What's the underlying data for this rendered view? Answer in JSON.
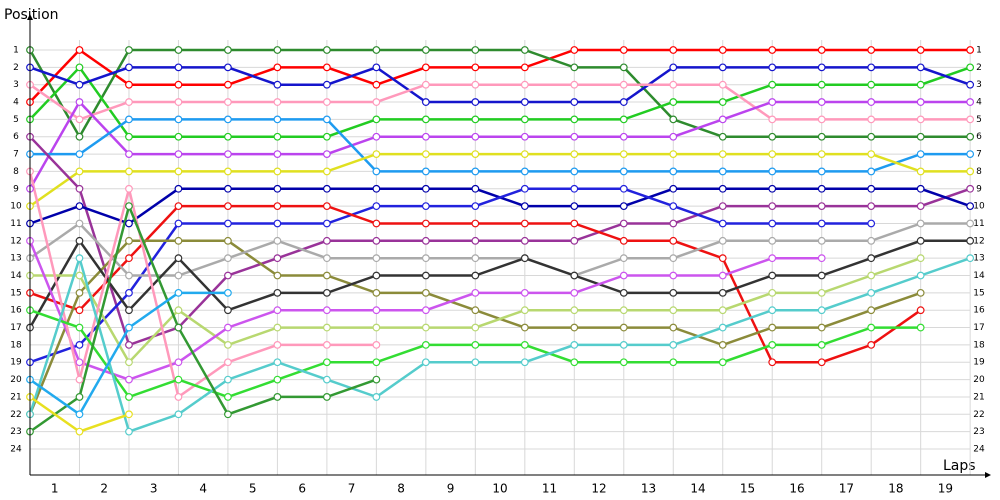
{
  "chart_data": {
    "type": "line",
    "y_label": "Position",
    "x_label": "Laps",
    "x": [
      0,
      1,
      2,
      3,
      4,
      5,
      6,
      7,
      8,
      9,
      10,
      11,
      12,
      13,
      14,
      15,
      16,
      17,
      18,
      19
    ],
    "xlim": [
      0,
      19.3
    ],
    "xticks": [
      {
        "value": 0.5,
        "label": "1"
      },
      {
        "value": 1.5,
        "label": "2"
      },
      {
        "value": 2.5,
        "label": "3"
      },
      {
        "value": 3.5,
        "label": "4"
      },
      {
        "value": 4.5,
        "label": "5"
      },
      {
        "value": 5.5,
        "label": "6"
      },
      {
        "value": 6.5,
        "label": "7"
      },
      {
        "value": 7.5,
        "label": "8"
      },
      {
        "value": 8.5,
        "label": "9"
      },
      {
        "value": 9.5,
        "label": "10"
      },
      {
        "value": 10.5,
        "label": "11"
      },
      {
        "value": 11.5,
        "label": "12"
      },
      {
        "value": 12.5,
        "label": "13"
      },
      {
        "value": 13.5,
        "label": "14"
      },
      {
        "value": 14.5,
        "label": "15"
      },
      {
        "value": 15.5,
        "label": "16"
      },
      {
        "value": 16.5,
        "label": "17"
      },
      {
        "value": 17.5,
        "label": "18"
      },
      {
        "value": 18.5,
        "label": "19"
      }
    ],
    "ylim": [
      -0.73,
      25.5
    ],
    "y_inverted": true,
    "yticks": [
      1,
      2,
      3,
      4,
      5,
      6,
      7,
      8,
      9,
      10,
      11,
      12,
      13,
      14,
      15,
      16,
      17,
      18,
      19,
      20,
      21,
      22,
      23,
      24
    ],
    "grid": true,
    "series": [
      {
        "color": "#ff0000",
        "values": [
          4,
          1,
          3,
          3,
          3,
          2,
          2,
          3,
          2,
          2,
          2,
          1,
          1,
          1,
          1,
          1,
          1,
          1,
          1,
          1
        ]
      },
      {
        "color": "#2e8b2e",
        "values": [
          1,
          6,
          1,
          1,
          1,
          1,
          1,
          1,
          1,
          1,
          1,
          2,
          2,
          5,
          6,
          6,
          6,
          6,
          6,
          6
        ]
      },
      {
        "color": "#22cc22",
        "values": [
          5,
          2,
          6,
          6,
          6,
          6,
          6,
          5,
          5,
          5,
          5,
          5,
          5,
          4,
          4,
          3,
          3,
          3,
          3,
          2
        ]
      },
      {
        "color": "#1515cc",
        "values": [
          2,
          3,
          2,
          2,
          2,
          3,
          3,
          2,
          4,
          4,
          4,
          4,
          4,
          2,
          2,
          2,
          2,
          2,
          2,
          3
        ]
      },
      {
        "color": "#ff99bb",
        "values": [
          3,
          5,
          4,
          4,
          4,
          4,
          4,
          4,
          3,
          3,
          3,
          3,
          3,
          3,
          3,
          5,
          5,
          5,
          5,
          5
        ]
      },
      {
        "color": "#bb44ee",
        "values": [
          9,
          4,
          7,
          7,
          7,
          7,
          7,
          6,
          6,
          6,
          6,
          6,
          6,
          6,
          5,
          4,
          4,
          4,
          4,
          4
        ]
      },
      {
        "color": "#1e9bf0",
        "values": [
          7,
          7,
          5,
          5,
          5,
          5,
          5,
          8,
          8,
          8,
          8,
          8,
          8,
          8,
          8,
          8,
          8,
          8,
          7,
          7
        ]
      },
      {
        "color": "#e0e020",
        "values": [
          10,
          8,
          8,
          8,
          8,
          8,
          8,
          7,
          7,
          7,
          7,
          7,
          7,
          7,
          7,
          7,
          7,
          7,
          8,
          8
        ]
      },
      {
        "color": "#993399",
        "values": [
          6,
          9,
          18,
          17,
          14,
          13,
          12,
          12,
          12,
          12,
          12,
          12,
          11,
          11,
          10,
          10,
          10,
          10,
          10,
          9
        ]
      },
      {
        "color": "#0000aa",
        "values": [
          11,
          10,
          11,
          9,
          9,
          9,
          9,
          9,
          9,
          9,
          10,
          10,
          10,
          9,
          9,
          9,
          9,
          9,
          9,
          10
        ]
      },
      {
        "color": "#2222dd",
        "values": [
          19,
          18,
          15,
          11,
          11,
          11,
          11,
          10,
          10,
          10,
          9,
          9,
          9,
          10,
          11,
          11,
          11,
          11,
          null,
          null
        ]
      },
      {
        "color": "#ee1111",
        "values": [
          15,
          16,
          13,
          10,
          10,
          10,
          10,
          11,
          11,
          11,
          11,
          11,
          12,
          12,
          13,
          19,
          19,
          18,
          16,
          null
        ]
      },
      {
        "color": "#8b8b3a",
        "values": [
          22,
          15,
          12,
          12,
          12,
          14,
          14,
          15,
          15,
          16,
          17,
          17,
          17,
          17,
          18,
          17,
          17,
          16,
          15,
          null
        ]
      },
      {
        "color": "#aaaaaa",
        "values": [
          13,
          11,
          14,
          14,
          13,
          12,
          13,
          13,
          13,
          13,
          13,
          14,
          13,
          13,
          12,
          12,
          12,
          12,
          11,
          11
        ]
      },
      {
        "color": "#333333",
        "values": [
          17,
          12,
          16,
          13,
          16,
          15,
          15,
          14,
          14,
          14,
          13,
          14,
          15,
          15,
          15,
          14,
          14,
          13,
          12,
          12
        ]
      },
      {
        "color": "#b8d870",
        "values": [
          14,
          14,
          19,
          16,
          18,
          17,
          17,
          17,
          17,
          17,
          16,
          16,
          16,
          16,
          16,
          15,
          15,
          14,
          13,
          null
        ]
      },
      {
        "color": "#cc55ee",
        "values": [
          12,
          19,
          20,
          19,
          17,
          16,
          16,
          16,
          16,
          15,
          15,
          15,
          14,
          14,
          14,
          13,
          13,
          null,
          null,
          null
        ]
      },
      {
        "color": "#ff99bb",
        "values": [
          8,
          20,
          9,
          21,
          19,
          18,
          18,
          18,
          null,
          null,
          null,
          null,
          null,
          null,
          null,
          null,
          null,
          null,
          null,
          null
        ]
      },
      {
        "color": "#33dd33",
        "values": [
          16,
          17,
          21,
          20,
          21,
          20,
          19,
          19,
          18,
          18,
          18,
          19,
          19,
          19,
          19,
          18,
          18,
          17,
          17,
          null
        ]
      },
      {
        "color": "#55cccc",
        "values": [
          22,
          13,
          23,
          22,
          20,
          19,
          20,
          21,
          19,
          19,
          19,
          18,
          18,
          18,
          17,
          16,
          16,
          15,
          14,
          13
        ]
      },
      {
        "color": "#339933",
        "values": [
          23,
          21,
          10,
          17,
          22,
          21,
          21,
          20,
          null,
          null,
          null,
          null,
          null,
          null,
          null,
          null,
          null,
          null,
          null,
          null
        ]
      },
      {
        "color": "#e8e020",
        "values": [
          21,
          23,
          22,
          null,
          null,
          null,
          null,
          null,
          null,
          null,
          null,
          null,
          null,
          null,
          null,
          null,
          null,
          null,
          null,
          null
        ]
      },
      {
        "color": "#22aaee",
        "values": [
          20,
          22,
          17,
          15,
          15,
          null,
          null,
          null,
          null,
          null,
          null,
          null,
          null,
          null,
          null,
          null,
          null,
          null,
          null,
          null
        ]
      }
    ]
  }
}
